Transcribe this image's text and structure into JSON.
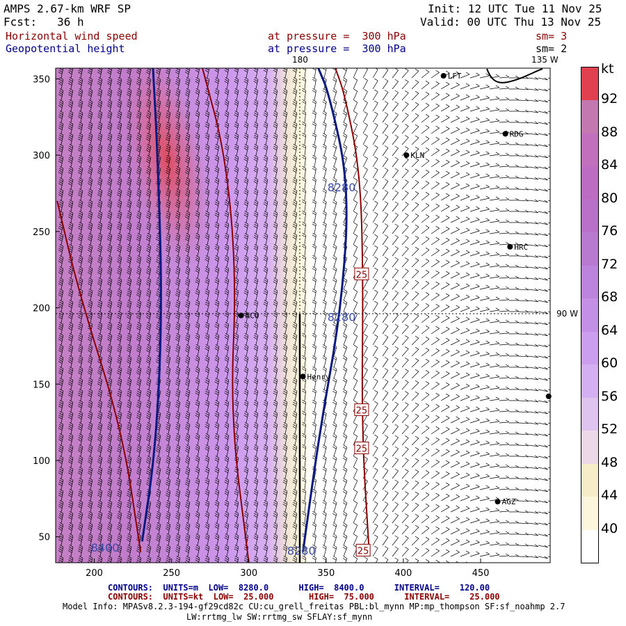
{
  "header": {
    "model": "AMPS 2.67-km WRF SP",
    "init": "Init: 12 UTC Tue 11 Nov 25",
    "fcst": "Fcst:   36 h",
    "valid": "Valid: 00 UTC Thu 13 Nov 25",
    "field1": "Horizontal wind speed",
    "pressure1": "at pressure =  300 hPa",
    "smooth1": "sm= 3",
    "field2": "Geopotential height",
    "pressure2": "at pressure =  300 hPa",
    "smooth2": "sm= 2"
  },
  "map_labels": {
    "lon180": "180",
    "lon135": "135 W",
    "lon90": "90 W"
  },
  "stations": [
    {
      "name": "LFT",
      "x": 426,
      "y": 352
    },
    {
      "name": "RDG",
      "x": 466,
      "y": 314
    },
    {
      "name": "KLN",
      "x": 402,
      "y": 300
    },
    {
      "name": "HRC",
      "x": 469,
      "y": 240
    },
    {
      "name": "NCO",
      "x": 295,
      "y": 195
    },
    {
      "name": "Henry",
      "x": 335,
      "y": 155
    },
    {
      "name": "AGZ",
      "x": 461,
      "y": 73
    },
    {
      "name": "",
      "x": 494,
      "y": 142
    }
  ],
  "colorbar": {
    "unit": "kt",
    "labels": [
      "92",
      "88",
      "84",
      "80",
      "76",
      "72",
      "68",
      "64",
      "60",
      "56",
      "52",
      "48",
      "44",
      "40"
    ],
    "colors": [
      "#e04050",
      "#c478b0",
      "#c070bc",
      "#bc6cc2",
      "#b870c8",
      "#b87ad0",
      "#bc84dc",
      "#c490e6",
      "#cc9ef0",
      "#d4b0f2",
      "#dec4ee",
      "#ecd8e6",
      "#f6ecc8",
      "#fbf6dc",
      "#ffffff"
    ]
  },
  "chart_data": {
    "type": "contour-map",
    "title": "Horizontal wind speed / Geopotential height at 300 hPa",
    "x_ticks": [
      200,
      250,
      300,
      350,
      400,
      450
    ],
    "y_ticks": [
      50,
      100,
      150,
      200,
      250,
      300,
      350
    ],
    "xlim": [
      175,
      495
    ],
    "ylim": [
      33,
      357
    ],
    "height_contours": [
      {
        "value": 8400,
        "label": "8400",
        "points": [
          [
            231,
            47
          ],
          [
            240,
            110
          ],
          [
            244,
            200
          ],
          [
            241,
            300
          ],
          [
            238,
            357
          ]
        ]
      },
      {
        "value": 8280,
        "label": "8280",
        "points": [
          [
            335,
            40
          ],
          [
            346,
            120
          ],
          [
            360,
            200
          ],
          [
            365,
            280
          ],
          [
            352,
            340
          ],
          [
            345,
            357
          ]
        ]
      }
    ],
    "wind_contours": [
      {
        "value": 25,
        "label": "25",
        "points": [
          [
            378,
            38
          ],
          [
            373,
            120
          ],
          [
            374,
            220
          ],
          [
            372,
            290
          ],
          [
            362,
            340
          ],
          [
            356,
            357
          ]
        ]
      },
      {
        "value": 50,
        "label": "",
        "points": [
          [
            300,
            33
          ],
          [
            288,
            130
          ],
          [
            292,
            220
          ],
          [
            285,
            300
          ],
          [
            270,
            357
          ]
        ]
      },
      {
        "value": 75,
        "label": "",
        "points": [
          [
            230,
            40
          ],
          [
            218,
            120
          ],
          [
            190,
            210
          ],
          [
            176,
            270
          ]
        ]
      }
    ],
    "contour_labels": [
      {
        "text": "25",
        "x": 373,
        "y": 222
      },
      {
        "text": "25",
        "x": 373,
        "y": 133
      },
      {
        "text": "25",
        "x": 373,
        "y": 108
      },
      {
        "text": "25",
        "x": 374,
        "y": 41
      },
      {
        "text": "8280",
        "x": 360,
        "y": 279
      },
      {
        "text": "8280",
        "x": 360,
        "y": 194
      },
      {
        "text": "8280",
        "x": 334,
        "y": 41
      },
      {
        "text": "8400",
        "x": 207,
        "y": 43
      }
    ],
    "legend": {
      "contour1": "CONTOURS:  UNITS=m  LOW=  8280.0      HIGH=  8400.0      INTERVAL=    120.00",
      "contour2": "CONTOURS:  UNITS=kt  LOW=  25.000       HIGH=  75.000      INTERVAL=    25.000"
    }
  },
  "footer": {
    "model_info": "Model Info: MPASv8.2.3-194-gf29cd82c CU:cu_grell_freitas PBL:bl_mynn MP:mp_thompson SF:sf_noahmp 2.7",
    "model_info2": "LW:rrtmg_lw SW:rrtmg_sw SFLAY:sf_mynn"
  }
}
